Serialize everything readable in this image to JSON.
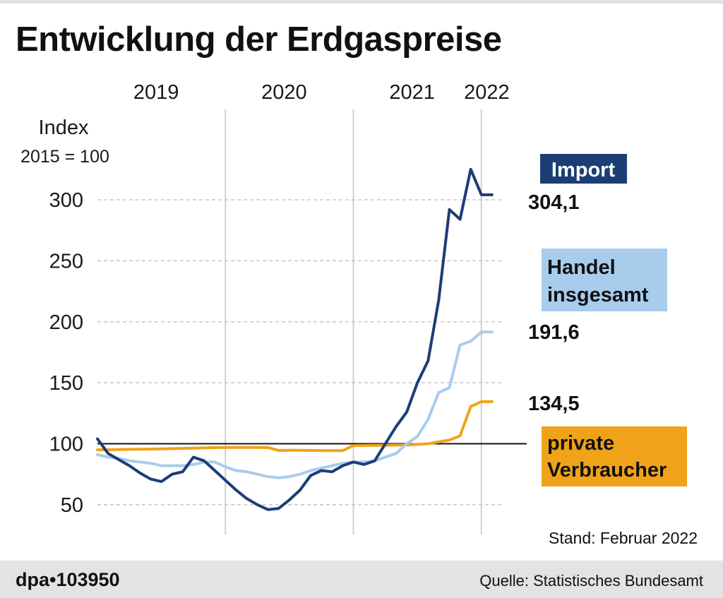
{
  "title": "Entwicklung der Erdgaspreise",
  "colors": {
    "import": "#1d3d75",
    "handel": "#a8ccec",
    "private": "#f0a318",
    "grid": "#c8c8c8",
    "year_divider": "#cfcfcf",
    "baseline": "#111111"
  },
  "chart_data": {
    "type": "line",
    "title": "Entwicklung der Erdgaspreise",
    "ylabel": "Index",
    "ylabel_note": "2015 = 100",
    "ylim": [
      38,
      325
    ],
    "yticks": [
      50,
      100,
      150,
      200,
      250,
      300
    ],
    "ytick_labels": [
      "50",
      "100",
      "150",
      "200",
      "250",
      "300"
    ],
    "grid": true,
    "reference_line": 100,
    "x_unit": "months since Jan 2019",
    "xlim": [
      0,
      38
    ],
    "year_labels": [
      {
        "label": "2019",
        "x": 5.5
      },
      {
        "label": "2020",
        "x": 17.5
      },
      {
        "label": "2021",
        "x": 29.5
      },
      {
        "label": "2022",
        "x": 36.5
      }
    ],
    "year_dividers": [
      12,
      24,
      36
    ],
    "series": [
      {
        "key": "import",
        "name": "Import",
        "last_value_label": "304,1",
        "x": [
          0,
          1,
          2,
          3,
          4,
          5,
          6,
          7,
          8,
          9,
          10,
          11,
          12,
          13,
          14,
          15,
          16,
          17,
          18,
          19,
          20,
          21,
          22,
          23,
          24,
          25,
          26,
          27,
          28,
          29,
          30,
          31,
          32,
          33,
          34,
          35,
          36,
          37
        ],
        "values": [
          104,
          92,
          87,
          82,
          76,
          71,
          69,
          75,
          77,
          89,
          86,
          78,
          70,
          62,
          55,
          50,
          46,
          47,
          54,
          62,
          74,
          78,
          77,
          82,
          85,
          83,
          86,
          100,
          114,
          126,
          150,
          168,
          218,
          292,
          284,
          338,
          304.1,
          304.1
        ]
      },
      {
        "key": "handel",
        "name": "Handel insgesamt",
        "name_lines": [
          "Handel",
          "insgesamt"
        ],
        "last_value_label": "191,6",
        "x": [
          0,
          1,
          2,
          3,
          4,
          5,
          6,
          7,
          8,
          9,
          10,
          11,
          12,
          13,
          14,
          15,
          16,
          17,
          18,
          19,
          20,
          21,
          22,
          23,
          24,
          25,
          26,
          27,
          28,
          29,
          30,
          31,
          32,
          33,
          34,
          35,
          36,
          37
        ],
        "values": [
          91,
          89,
          88,
          86,
          85,
          84,
          82,
          82,
          82,
          83,
          85,
          85,
          81,
          78,
          77,
          75,
          73,
          72,
          73,
          75,
          78,
          80,
          82,
          84,
          85,
          85,
          86,
          89,
          92,
          100,
          106,
          120,
          142,
          146,
          181,
          184,
          191.6,
          191.6
        ]
      },
      {
        "key": "private",
        "name": "private Verbraucher",
        "name_lines": [
          "private",
          "Verbraucher"
        ],
        "last_value_label": "134,5",
        "x": [
          0,
          1,
          2,
          3,
          4,
          5,
          6,
          7,
          8,
          9,
          10,
          11,
          12,
          13,
          14,
          15,
          16,
          17,
          18,
          19,
          20,
          21,
          22,
          23,
          24,
          25,
          26,
          27,
          28,
          29,
          30,
          31,
          32,
          33,
          34,
          35,
          36,
          37
        ],
        "values": [
          95,
          95,
          95.2,
          95.4,
          95.5,
          95.6,
          95.8,
          96,
          96.2,
          96.4,
          96.6,
          96.8,
          97,
          97,
          97,
          97,
          96.8,
          94.5,
          94.6,
          94.6,
          94.5,
          94.3,
          94.3,
          94.3,
          98.5,
          98.6,
          98.7,
          98.8,
          98.9,
          99,
          99.5,
          100,
          101.5,
          103,
          106.5,
          130.5,
          134.5,
          134.5
        ]
      }
    ]
  },
  "stand": "Stand: Februar 2022",
  "footer": {
    "id": "dpa•103950",
    "source": "Quelle: Statistisches Bundesamt"
  }
}
